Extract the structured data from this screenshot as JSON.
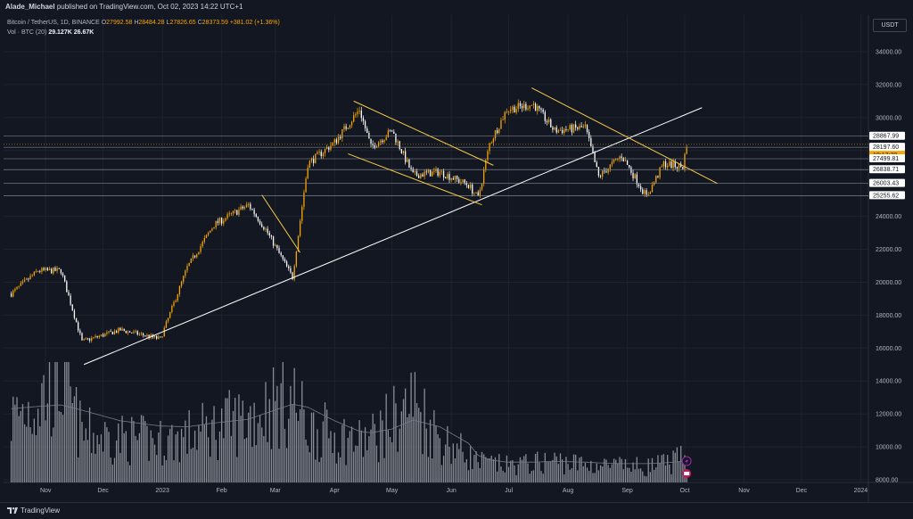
{
  "header": {
    "publisher": "Alade_Michael",
    "published_text": "published on TradingView.com, Oct 02, 2023 14:22 UTC+1"
  },
  "legend": {
    "symbol": "Bitcoin / TetherUS, 1D, BINANCE",
    "open_label": "O",
    "open": "27992.58",
    "high_label": "H",
    "high": "28484.28",
    "low_label": "L",
    "low": "27826.65",
    "close_label": "C",
    "close": "28373.59",
    "change": "+381.02 (+1.36%)",
    "volume_label": "Vol · BTC (20)",
    "volume": "29.127K",
    "volume_ma": "26.67K"
  },
  "currency_button": "USDT",
  "footer": {
    "brand": "TradingView"
  },
  "colors": {
    "background": "#131722",
    "candle_up": "#f7a600",
    "candle_down": "#ffffff",
    "volume": "#b2b5be",
    "trend_line": "#f7c948",
    "support_line": "#ffffff",
    "level_label": "#ffffff",
    "current_price": "#f7a600"
  },
  "chart_data": {
    "type": "candlestick",
    "x": [
      "2022-10-14",
      "2022-10-28",
      "2022-11-09",
      "2022-11-20",
      "2022-12-10",
      "2022-12-31",
      "2023-01-14",
      "2023-01-28",
      "2023-02-15",
      "2023-02-24",
      "2023-03-10",
      "2023-03-18",
      "2023-04-01",
      "2023-04-14",
      "2023-04-20",
      "2023-05-01",
      "2023-05-12",
      "2023-05-26",
      "2023-06-10",
      "2023-06-15",
      "2023-06-21",
      "2023-06-30",
      "2023-07-14",
      "2023-07-25",
      "2023-08-10",
      "2023-08-17",
      "2023-08-29",
      "2023-09-11",
      "2023-09-20",
      "2023-09-30",
      "2023-10-02"
    ],
    "series": [
      {
        "values": [
          19300,
          20700,
          20700,
          16400,
          17100,
          16550,
          20900,
          23500,
          24700,
          23200,
          20300,
          27200,
          28500,
          30500,
          28200,
          29200,
          26500,
          26700,
          25900,
          25100,
          28400,
          30500,
          30800,
          29200,
          29400,
          26400,
          27700,
          25200,
          27200,
          27000,
          28400
        ]
      }
    ],
    "price_ticks": [
      "34000.00",
      "32000.00",
      "30000.00",
      "28000.00",
      "26000.00",
      "24000.00",
      "22000.00",
      "20000.00",
      "18000.00",
      "16000.00",
      "14000.00",
      "12000.00",
      "10000.00",
      "8000.00"
    ],
    "price_min": 8000,
    "price_max": 34000,
    "x_ticks": [
      "Nov",
      "Dec",
      "2023",
      "Feb",
      "Mar",
      "Apr",
      "May",
      "Jun",
      "Jul",
      "Aug",
      "Sep",
      "Oct",
      "Nov",
      "Dec",
      "2024"
    ],
    "x_tick_dates": [
      "2022-11-01",
      "2022-12-01",
      "2023-01-01",
      "2023-02-01",
      "2023-03-01",
      "2023-04-01",
      "2023-05-01",
      "2023-06-01",
      "2023-07-01",
      "2023-08-01",
      "2023-09-01",
      "2023-10-01",
      "2023-11-01",
      "2023-12-01",
      "2024-01-01"
    ],
    "horizontal_levels": [
      "28867.99",
      "28373.59",
      "28197.60",
      "27499.81",
      "26838.71",
      "26003.43",
      "25255.62"
    ],
    "current_price": "28373.59",
    "countdown": "10:17:20",
    "trend_lines": [
      {
        "name": "ascending-support",
        "from": [
          "2022-11-21",
          15000
        ],
        "to": [
          "2023-10-10",
          30600
        ]
      },
      {
        "name": "falling-wedge-top",
        "from": [
          "2023-02-22",
          25300
        ],
        "to": [
          "2023-03-14",
          21800
        ]
      },
      {
        "name": "channel-upper",
        "from": [
          "2023-04-11",
          31000
        ],
        "to": [
          "2023-06-23",
          27100
        ]
      },
      {
        "name": "channel-lower",
        "from": [
          "2023-04-08",
          27800
        ],
        "to": [
          "2023-06-17",
          24700
        ]
      },
      {
        "name": "descending-resistance",
        "from": [
          "2023-07-13",
          31800
        ],
        "to": [
          "2023-10-18",
          26000
        ]
      }
    ],
    "volume": {
      "label": "Vol · BTC (20)",
      "values": [
        9500,
        12000,
        15500,
        7000,
        6500,
        6000,
        6800,
        8000,
        9500,
        11000,
        12500,
        8000,
        7000,
        6000,
        6500,
        9000,
        12000,
        6500,
        4000,
        3000,
        2800,
        2500,
        2800,
        3200,
        2600,
        2500,
        2400,
        2300,
        2700,
        3500,
        2900
      ],
      "ma_values": [
        9800,
        10100,
        10300,
        9600,
        8200,
        7500,
        7400,
        7900,
        8400,
        9200,
        10400,
        10000,
        8200,
        6800,
        6600,
        7100,
        8300,
        7400,
        5200,
        3600,
        3000,
        2700,
        2700,
        2800,
        2700,
        2600,
        2500,
        2500,
        2600,
        2800,
        2900
      ],
      "max": 16000
    }
  }
}
